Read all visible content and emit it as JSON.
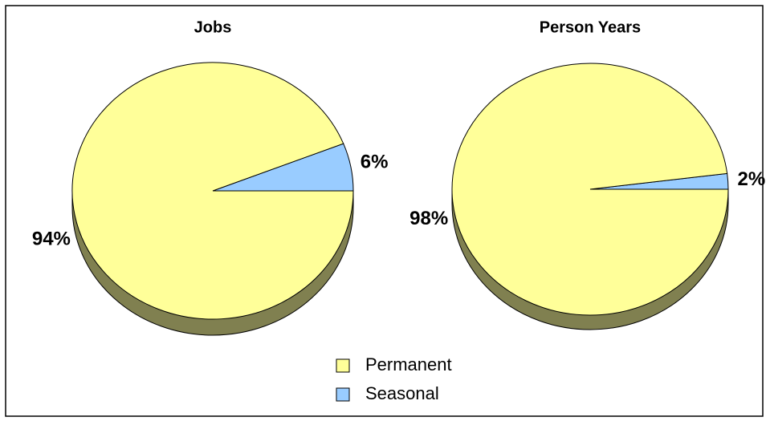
{
  "chart_data": [
    {
      "type": "pie",
      "title": "Jobs",
      "categories": [
        "Permanent",
        "Seasonal"
      ],
      "values": [
        94,
        6
      ],
      "value_labels": [
        "94%",
        "6%"
      ],
      "colors": [
        "#ffff99",
        "#99ccff"
      ]
    },
    {
      "type": "pie",
      "title": "Person Years",
      "categories": [
        "Permanent",
        "Seasonal"
      ],
      "values": [
        98,
        2
      ],
      "value_labels": [
        "98%",
        "2%"
      ],
      "colors": [
        "#ffff99",
        "#99ccff"
      ]
    }
  ]
}
